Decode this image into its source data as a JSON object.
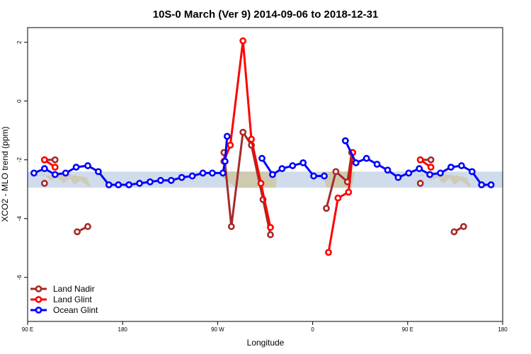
{
  "chart_data": {
    "type": "line",
    "title": "10S-0 March (Ver 9)   2014-09-06 to 2018-12-31",
    "xlabel": "Longitude",
    "ylabel": "XCO2 - MLO trend (ppm)",
    "xlim": [
      90,
      540
    ],
    "ylim": [
      -7.5,
      2.5
    ],
    "xticks": [
      {
        "value": 90,
        "label": "90 E"
      },
      {
        "value": 180,
        "label": "180"
      },
      {
        "value": 270,
        "label": "90 W"
      },
      {
        "value": 360,
        "label": "0"
      },
      {
        "value": 450,
        "label": "90 E"
      },
      {
        "value": 540,
        "label": "180"
      }
    ],
    "yticks": [
      {
        "value": 2,
        "label": "2"
      },
      {
        "value": 0,
        "label": "0"
      },
      {
        "value": -2,
        "label": "-2"
      },
      {
        "value": -4,
        "label": "-4"
      },
      {
        "value": -6,
        "label": "-6"
      }
    ],
    "band": {
      "ymin": -2.95,
      "ymax": -2.4,
      "color": "#a9bfdc"
    },
    "land_color": "#f9d77a",
    "series": [
      {
        "name": "Land Nadir",
        "color": "#a52a2a",
        "segments": [
          [
            [
              106,
              -2.0
            ],
            [
              116,
              -2.0
            ]
          ],
          [
            [
              106,
              -2.8
            ]
          ],
          [
            [
              137,
              -4.45
            ],
            [
              147,
              -4.27
            ]
          ],
          [
            [
              276,
              -1.75
            ],
            [
              283,
              -4.27
            ],
            [
              294,
              -1.06
            ],
            [
              302,
              -1.5
            ],
            [
              313,
              -3.35
            ],
            [
              320,
              -4.55
            ]
          ],
          [
            [
              373,
              -3.65
            ],
            [
              382,
              -2.4
            ],
            [
              393,
              -2.75
            ],
            [
              397,
              -1.75
            ]
          ],
          [
            [
              462,
              -2.0
            ],
            [
              472,
              -2.0
            ]
          ],
          [
            [
              462,
              -2.8
            ]
          ],
          [
            [
              494,
              -4.45
            ],
            [
              503,
              -4.27
            ]
          ]
        ]
      },
      {
        "name": "Land Glint",
        "color": "#ff0000",
        "segments": [
          [
            [
              106,
              -2.0
            ],
            [
              116,
              -2.25
            ]
          ],
          [
            [
              276,
              -2.05
            ],
            [
              282,
              -1.5
            ],
            [
              294,
              2.05
            ],
            [
              302,
              -1.3
            ],
            [
              311,
              -2.8
            ],
            [
              320,
              -4.3
            ]
          ],
          [
            [
              375,
              -5.15
            ],
            [
              384,
              -3.3
            ],
            [
              394,
              -3.1
            ],
            [
              398,
              -1.75
            ]
          ],
          [
            [
              462,
              -2.0
            ],
            [
              472,
              -2.25
            ]
          ]
        ]
      },
      {
        "name": "Ocean Glint",
        "color": "#0000ff",
        "segments": [
          [
            [
              96,
              -2.45
            ],
            [
              106,
              -2.3
            ],
            [
              116,
              -2.5
            ],
            [
              126,
              -2.45
            ],
            [
              136,
              -2.25
            ],
            [
              147,
              -2.2
            ],
            [
              157,
              -2.4
            ],
            [
              167,
              -2.85
            ],
            [
              176,
              -2.85
            ],
            [
              186,
              -2.85
            ],
            [
              196,
              -2.8
            ],
            [
              206,
              -2.75
            ],
            [
              216,
              -2.7
            ],
            [
              226,
              -2.7
            ],
            [
              236,
              -2.6
            ],
            [
              246,
              -2.55
            ],
            [
              256,
              -2.45
            ],
            [
              265,
              -2.45
            ],
            [
              275,
              -2.45
            ],
            [
              277,
              -2.05
            ],
            [
              279,
              -1.2
            ]
          ],
          [
            [
              312,
              -1.95
            ],
            [
              322,
              -2.5
            ],
            [
              331,
              -2.3
            ],
            [
              341,
              -2.2
            ],
            [
              351,
              -2.1
            ],
            [
              361,
              -2.55
            ],
            [
              371,
              -2.55
            ]
          ],
          [
            [
              391,
              -1.35
            ],
            [
              401,
              -2.1
            ],
            [
              411,
              -1.95
            ],
            [
              421,
              -2.15
            ],
            [
              431,
              -2.35
            ],
            [
              441,
              -2.6
            ],
            [
              451,
              -2.45
            ],
            [
              461,
              -2.3
            ],
            [
              471,
              -2.5
            ],
            [
              481,
              -2.45
            ],
            [
              491,
              -2.25
            ],
            [
              501,
              -2.2
            ],
            [
              511,
              -2.4
            ],
            [
              520,
              -2.85
            ],
            [
              529,
              -2.85
            ]
          ]
        ]
      }
    ],
    "legend_position": "bottom-left",
    "grid": false
  }
}
